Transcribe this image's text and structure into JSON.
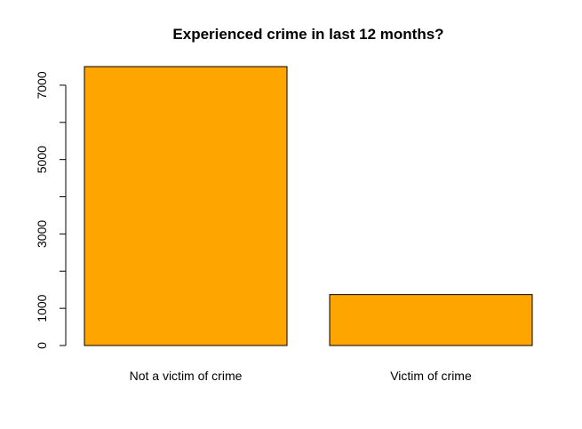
{
  "chart_data": {
    "type": "bar",
    "title": "Experienced crime in last 12 months?",
    "xlabel": "",
    "ylabel": "",
    "categories": [
      "Not a victim of crime",
      "Victim of crime"
    ],
    "values": [
      7500,
      1370
    ],
    "y_ticks": [
      0,
      1000,
      3000,
      5000,
      7000
    ],
    "y_minor_ticks": [
      2000,
      4000,
      6000
    ],
    "ylim": [
      0,
      7500
    ],
    "grid": false,
    "legend": "none",
    "bar_color": "#FFA500",
    "bar_border_color": "#000000"
  }
}
